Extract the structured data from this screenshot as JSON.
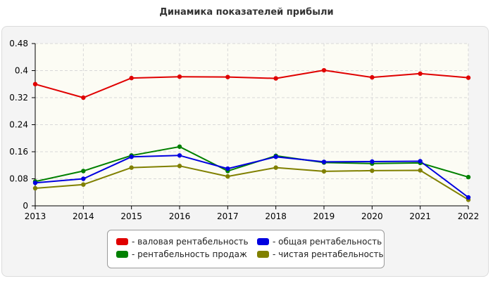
{
  "chart_data": {
    "type": "line",
    "title": "Динамика показателей прибыли",
    "categories": [
      "2013",
      "2014",
      "2015",
      "2016",
      "2017",
      "2018",
      "2019",
      "2020",
      "2021",
      "2022"
    ],
    "ylim": [
      0,
      0.48
    ],
    "yticks": [
      "0",
      "0.08",
      "0.16",
      "0.24",
      "0.32",
      "0.4",
      "0.48"
    ],
    "grid": true,
    "legend_position": "bottom",
    "series": [
      {
        "name": "- валовая рентабельность",
        "color": "#e00000",
        "values": [
          0.36,
          0.32,
          0.378,
          0.382,
          0.381,
          0.377,
          0.401,
          0.38,
          0.391,
          0.379
        ]
      },
      {
        "name": "- общая рентабельность",
        "color": "#0000e0",
        "values": [
          0.068,
          0.08,
          0.145,
          0.149,
          0.11,
          0.145,
          0.13,
          0.131,
          0.132,
          0.025
        ]
      },
      {
        "name": "- рентабельность продаж",
        "color": "#008000",
        "values": [
          0.072,
          0.103,
          0.149,
          0.175,
          0.103,
          0.148,
          0.128,
          0.125,
          0.127,
          0.085
        ]
      },
      {
        "name": "- чистая рентабельность",
        "color": "#808000",
        "values": [
          0.052,
          0.063,
          0.113,
          0.118,
          0.087,
          0.113,
          0.102,
          0.104,
          0.105,
          0.018
        ]
      }
    ]
  }
}
